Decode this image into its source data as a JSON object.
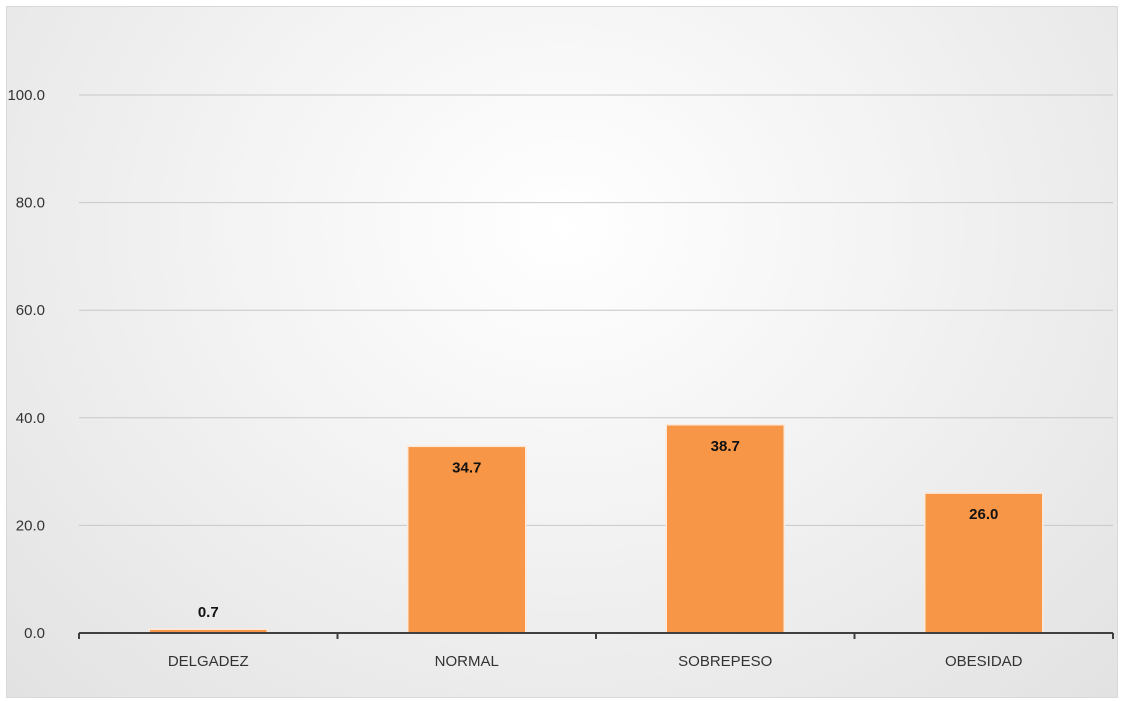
{
  "chart_data": {
    "type": "bar",
    "categories": [
      "DELGADEZ",
      "NORMAL",
      "SOBREPESO",
      "OBESIDAD"
    ],
    "values": [
      0.7,
      34.7,
      38.7,
      26.0
    ],
    "data_labels": [
      "0.7",
      "34.7",
      "38.7",
      "26.0"
    ],
    "yticks": [
      "0.0",
      "20.0",
      "40.0",
      "60.0",
      "80.0",
      "100.0"
    ],
    "ylim": [
      0,
      100
    ],
    "title": "",
    "xlabel": "",
    "ylabel": "",
    "grid": true,
    "bar_color": "#f79646",
    "bar_border_color": "#fde9d9",
    "label_position": [
      "above",
      "inside-top",
      "inside-top",
      "inside-top"
    ]
  }
}
